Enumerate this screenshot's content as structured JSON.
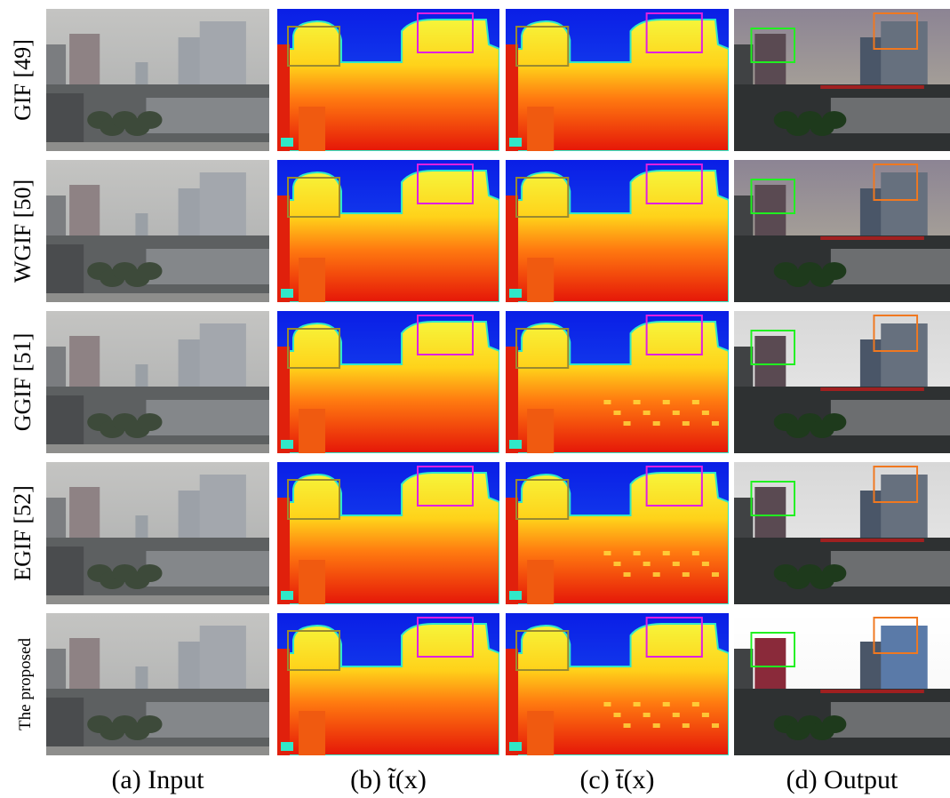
{
  "rows": [
    {
      "label": "GIF [49]"
    },
    {
      "label": "WGIF [50]"
    },
    {
      "label": "GGIF [51]"
    },
    {
      "label": "EGIF [52]"
    },
    {
      "label": "The proposed"
    }
  ],
  "columns": [
    {
      "caption": "(a) Input"
    },
    {
      "caption": "(b) t̃(x)"
    },
    {
      "caption": "(c) t̄(x)"
    },
    {
      "caption": "(d) Output"
    }
  ]
}
